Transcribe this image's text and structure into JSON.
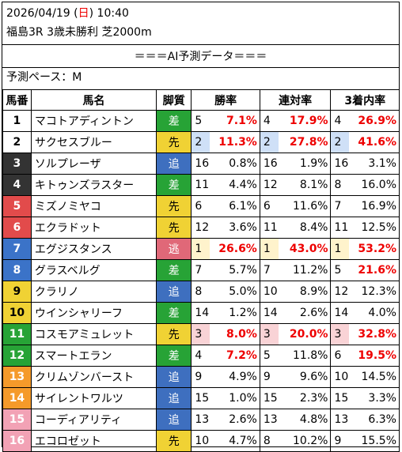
{
  "header": {
    "date": "2026/04/19",
    "day_open": "(",
    "day": "日",
    "day_close": ")",
    "time": "10:40",
    "race": "福島3R 3歳未勝利 芝2000m"
  },
  "title": "＝＝＝AI予測データ＝＝＝",
  "pace": "予測ペース：M",
  "columns": {
    "num": "馬番",
    "name": "馬名",
    "style": "脚質",
    "win": "勝率",
    "place2": "連対率",
    "place3": "3着内率"
  },
  "colors": {
    "day_sunday": "#ee0000",
    "highlight_pct": "#ee0000",
    "frame_colors": [
      "#ffffff",
      "#ffffff",
      "#333333",
      "#333333",
      "#e24b4b",
      "#e24b4b",
      "#3b73c8",
      "#3b73c8",
      "#f0d234",
      "#f0d234",
      "#27a336",
      "#27a336",
      "#f59a2a",
      "#f59a2a",
      "#f2a2b5",
      "#f2a2b5"
    ]
  },
  "rows": [
    {
      "num": "1",
      "name": "マコトアディントン",
      "style": "差",
      "w_rank": "5",
      "w_pct": "7.1%",
      "p2_rank": "4",
      "p2_pct": "17.9%",
      "p3_rank": "4",
      "p3_pct": "26.9%",
      "frame_bg": "#ffffff",
      "frame_fg": "#000000",
      "style_cls": "st-sa",
      "hl": "",
      "w_red": true,
      "p2_red": true,
      "p3_red": true
    },
    {
      "num": "2",
      "name": "サクセスブルー",
      "style": "先",
      "w_rank": "2",
      "w_pct": "11.3%",
      "p2_rank": "2",
      "p2_pct": "27.8%",
      "p3_rank": "2",
      "p3_pct": "41.6%",
      "frame_bg": "#ffffff",
      "frame_fg": "#000000",
      "style_cls": "st-sen",
      "hl": "hl-blue",
      "w_red": true,
      "p2_red": true,
      "p3_red": true
    },
    {
      "num": "3",
      "name": "ソルプレーザ",
      "style": "追",
      "w_rank": "16",
      "w_pct": "0.8%",
      "p2_rank": "16",
      "p2_pct": "1.9%",
      "p3_rank": "16",
      "p3_pct": "3.1%",
      "frame_bg": "#333333",
      "frame_fg": "#ffffff",
      "style_cls": "st-oi",
      "hl": "",
      "w_red": false,
      "p2_red": false,
      "p3_red": false
    },
    {
      "num": "4",
      "name": "キトゥンズラスター",
      "style": "差",
      "w_rank": "11",
      "w_pct": "4.4%",
      "p2_rank": "12",
      "p2_pct": "8.1%",
      "p3_rank": "8",
      "p3_pct": "16.0%",
      "frame_bg": "#333333",
      "frame_fg": "#ffffff",
      "style_cls": "st-sa",
      "hl": "",
      "w_red": false,
      "p2_red": false,
      "p3_red": false
    },
    {
      "num": "5",
      "name": "ミズノミヤコ",
      "style": "先",
      "w_rank": "6",
      "w_pct": "6.1%",
      "p2_rank": "6",
      "p2_pct": "11.6%",
      "p3_rank": "7",
      "p3_pct": "16.9%",
      "frame_bg": "#e24b4b",
      "frame_fg": "#ffffff",
      "style_cls": "st-sen",
      "hl": "",
      "w_red": false,
      "p2_red": false,
      "p3_red": false
    },
    {
      "num": "6",
      "name": "エクラドット",
      "style": "先",
      "w_rank": "12",
      "w_pct": "3.6%",
      "p2_rank": "11",
      "p2_pct": "8.4%",
      "p3_rank": "11",
      "p3_pct": "12.5%",
      "frame_bg": "#e24b4b",
      "frame_fg": "#ffffff",
      "style_cls": "st-sen",
      "hl": "",
      "w_red": false,
      "p2_red": false,
      "p3_red": false
    },
    {
      "num": "7",
      "name": "エグジスタンス",
      "style": "逃",
      "w_rank": "1",
      "w_pct": "26.6%",
      "p2_rank": "1",
      "p2_pct": "43.0%",
      "p3_rank": "1",
      "p3_pct": "53.2%",
      "frame_bg": "#3b73c8",
      "frame_fg": "#ffffff",
      "style_cls": "st-nige",
      "hl": "hl-yellow",
      "w_red": true,
      "p2_red": true,
      "p3_red": true
    },
    {
      "num": "8",
      "name": "グラスベルグ",
      "style": "差",
      "w_rank": "7",
      "w_pct": "5.7%",
      "p2_rank": "7",
      "p2_pct": "11.2%",
      "p3_rank": "5",
      "p3_pct": "21.6%",
      "frame_bg": "#3b73c8",
      "frame_fg": "#ffffff",
      "style_cls": "st-sa",
      "hl": "",
      "w_red": false,
      "p2_red": false,
      "p3_red": true
    },
    {
      "num": "9",
      "name": "クラリノ",
      "style": "追",
      "w_rank": "8",
      "w_pct": "5.0%",
      "p2_rank": "10",
      "p2_pct": "8.9%",
      "p3_rank": "12",
      "p3_pct": "12.3%",
      "frame_bg": "#f0d234",
      "frame_fg": "#000000",
      "style_cls": "st-oi",
      "hl": "",
      "w_red": false,
      "p2_red": false,
      "p3_red": false
    },
    {
      "num": "10",
      "name": "ウインシャリーフ",
      "style": "差",
      "w_rank": "14",
      "w_pct": "1.2%",
      "p2_rank": "14",
      "p2_pct": "2.6%",
      "p3_rank": "14",
      "p3_pct": "4.0%",
      "frame_bg": "#f0d234",
      "frame_fg": "#000000",
      "style_cls": "st-sa",
      "hl": "",
      "w_red": false,
      "p2_red": false,
      "p3_red": false
    },
    {
      "num": "11",
      "name": "コスモアミュレット",
      "style": "先",
      "w_rank": "3",
      "w_pct": "8.0%",
      "p2_rank": "3",
      "p2_pct": "20.0%",
      "p3_rank": "3",
      "p3_pct": "32.8%",
      "frame_bg": "#27a336",
      "frame_fg": "#ffffff",
      "style_cls": "st-sen",
      "hl": "hl-pink",
      "w_red": true,
      "p2_red": true,
      "p3_red": true
    },
    {
      "num": "12",
      "name": "スマートエラン",
      "style": "差",
      "w_rank": "4",
      "w_pct": "7.2%",
      "p2_rank": "5",
      "p2_pct": "11.8%",
      "p3_rank": "6",
      "p3_pct": "19.5%",
      "frame_bg": "#27a336",
      "frame_fg": "#ffffff",
      "style_cls": "st-sa",
      "hl": "",
      "w_red": true,
      "p2_red": false,
      "p3_red": true
    },
    {
      "num": "13",
      "name": "クリムゾンバースト",
      "style": "追",
      "w_rank": "9",
      "w_pct": "4.9%",
      "p2_rank": "9",
      "p2_pct": "9.6%",
      "p3_rank": "10",
      "p3_pct": "14.5%",
      "frame_bg": "#f59a2a",
      "frame_fg": "#ffffff",
      "style_cls": "st-oi",
      "hl": "",
      "w_red": false,
      "p2_red": false,
      "p3_red": false
    },
    {
      "num": "14",
      "name": "サイレントワルツ",
      "style": "追",
      "w_rank": "15",
      "w_pct": "1.0%",
      "p2_rank": "15",
      "p2_pct": "2.3%",
      "p3_rank": "15",
      "p3_pct": "3.3%",
      "frame_bg": "#f59a2a",
      "frame_fg": "#ffffff",
      "style_cls": "st-oi",
      "hl": "",
      "w_red": false,
      "p2_red": false,
      "p3_red": false
    },
    {
      "num": "15",
      "name": "コーディアリティ",
      "style": "追",
      "w_rank": "13",
      "w_pct": "2.6%",
      "p2_rank": "13",
      "p2_pct": "4.8%",
      "p3_rank": "13",
      "p3_pct": "6.3%",
      "frame_bg": "#f2a2b5",
      "frame_fg": "#ffffff",
      "style_cls": "st-oi",
      "hl": "",
      "w_red": false,
      "p2_red": false,
      "p3_red": false
    },
    {
      "num": "16",
      "name": "エコロゼット",
      "style": "先",
      "w_rank": "10",
      "w_pct": "4.7%",
      "p2_rank": "8",
      "p2_pct": "10.2%",
      "p3_rank": "9",
      "p3_pct": "15.5%",
      "frame_bg": "#f2a2b5",
      "frame_fg": "#ffffff",
      "style_cls": "st-sen",
      "hl": "",
      "w_red": false,
      "p2_red": false,
      "p3_red": false
    }
  ]
}
